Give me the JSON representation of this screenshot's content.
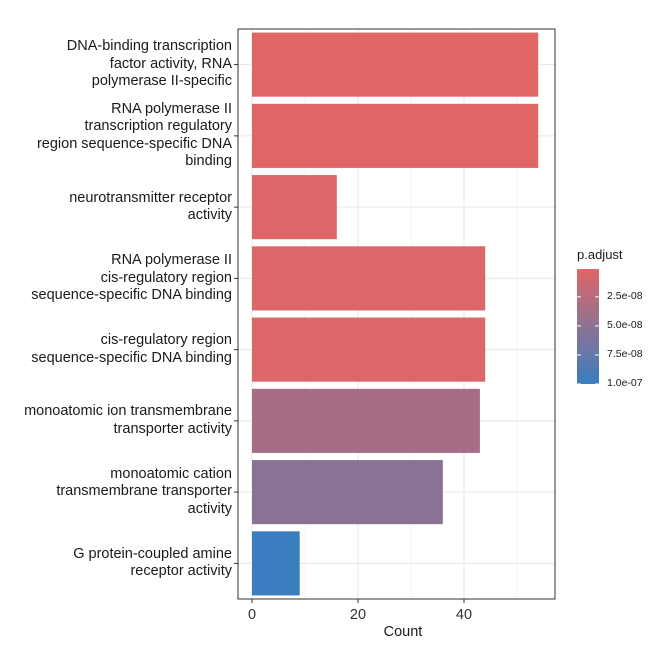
{
  "chart_data": {
    "type": "bar",
    "orientation": "horizontal",
    "xlabel": "Count",
    "xlim": [
      0,
      57
    ],
    "xticks": [
      0,
      20,
      40
    ],
    "grid": true,
    "legend_placement": "right",
    "categories": [
      "DNA-binding transcription\nfactor activity, RNA\npolymerase II-specific",
      "RNA polymerase II\ntranscription regulatory\nregion sequence-specific DNA\nbinding",
      "neurotransmitter receptor\nactivity",
      "RNA polymerase II\ncis-regulatory region\nsequence-specific DNA binding",
      "cis-regulatory region\nsequence-specific DNA binding",
      "monoatomic ion transmembrane\ntransporter activity",
      "monoatomic cation\ntransmembrane transporter\nactivity",
      "G protein-coupled amine\nreceptor activity"
    ],
    "values": [
      54,
      54,
      16,
      44,
      44,
      43,
      36,
      9
    ],
    "p_adjust": [
      1e-09,
      1e-09,
      3e-09,
      4e-09,
      4e-09,
      3.6e-08,
      5.2e-08,
      1e-07
    ],
    "legend": {
      "title": "p.adjust",
      "ticks": [
        2.5e-08,
        5e-08,
        7.5e-08,
        1e-07
      ],
      "tick_labels": [
        "2.5e-08",
        "5.0e-08",
        "7.5e-08",
        "1.0e-07"
      ],
      "range": [
        1e-09,
        1e-07
      ],
      "low_color": "#E06666",
      "high_color": "#3A7EC0"
    }
  }
}
